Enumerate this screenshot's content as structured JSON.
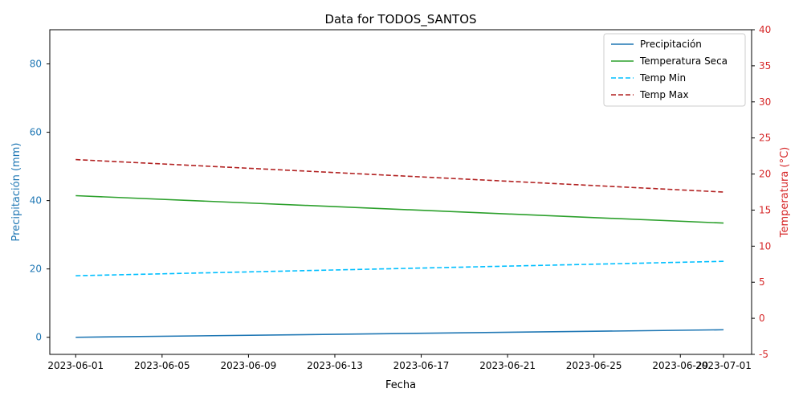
{
  "chart_data": {
    "type": "line",
    "title": "Data for TODOS_SANTOS",
    "xlabel": "Fecha",
    "ylabel_left": "Precipitación (mm)",
    "ylabel_right": "Temperatura (°C)",
    "x_range": [
      "2023-06-01",
      "2023-07-03"
    ],
    "ylim_left": [
      -5,
      90
    ],
    "ylim_right": [
      -5,
      40
    ],
    "x_ticks": [
      "2023-06-01",
      "2023-06-05",
      "2023-06-09",
      "2023-06-13",
      "2023-06-17",
      "2023-06-21",
      "2023-06-25",
      "2023-06-29",
      "2023-07-01"
    ],
    "y_ticks_left": [
      0,
      20,
      40,
      60,
      80
    ],
    "y_ticks_right": [
      -5,
      0,
      5,
      10,
      15,
      20,
      25,
      30,
      35,
      40
    ],
    "grid": false,
    "legend_position": "top-right",
    "colors": {
      "left_axis": "#1f77b4",
      "right_axis": "#d62728"
    },
    "series": [
      {
        "name": "Precipitación",
        "axis": "left",
        "color": "#1f77b4",
        "dash": "solid",
        "points": [
          [
            "2023-06-01",
            0.0
          ],
          [
            "2023-07-01",
            2.2
          ]
        ]
      },
      {
        "name": "Temperatura Seca",
        "axis": "right",
        "color": "#2ca02c",
        "dash": "solid",
        "points": [
          [
            "2023-06-01",
            17.0
          ],
          [
            "2023-07-01",
            13.2
          ]
        ]
      },
      {
        "name": "Temp Min",
        "axis": "right",
        "color": "#00bfff",
        "dash": "dashed",
        "points": [
          [
            "2023-06-01",
            5.9
          ],
          [
            "2023-07-01",
            7.9
          ]
        ]
      },
      {
        "name": "Temp Max",
        "axis": "right",
        "color": "#b22222",
        "dash": "dashed",
        "points": [
          [
            "2023-06-01",
            22.0
          ],
          [
            "2023-07-01",
            17.5
          ]
        ]
      }
    ]
  }
}
